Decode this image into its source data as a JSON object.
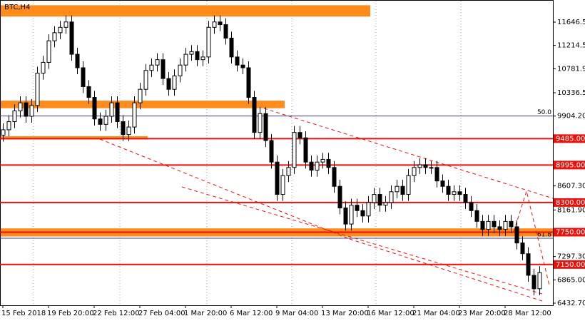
{
  "chart_data": {
    "type": "candlestick",
    "title": "BTC,H4",
    "categories": [
      "15 Feb 2018",
      null,
      null,
      null,
      null,
      null,
      null,
      null,
      "19 Feb 20:00",
      null,
      null,
      null,
      null,
      null,
      null,
      null,
      "22 Feb 12:00",
      null,
      null,
      null,
      null,
      null,
      null,
      null,
      "27 Feb 04:00",
      null,
      null,
      null,
      null,
      null,
      null,
      null,
      "1 Mar 20:00",
      null,
      null,
      null,
      null,
      null,
      null,
      null,
      "6 Mar 12:00",
      null,
      null,
      null,
      null,
      null,
      null,
      null,
      "9 Mar 04:00",
      null,
      null,
      null,
      null,
      null,
      null,
      null,
      "13 Mar 20:00",
      null,
      null,
      null,
      null,
      null,
      null,
      null,
      "16 Mar 12:00",
      null,
      null,
      null,
      null,
      null,
      null,
      null,
      "21 Mar 04:00",
      null,
      null,
      null,
      null,
      null,
      null,
      null,
      "23 Mar 20:00",
      null,
      null,
      null,
      null,
      null,
      null,
      null,
      "28 Mar 12:00",
      null,
      null,
      null,
      null,
      null,
      null
    ],
    "open": [
      9550,
      9650,
      9800,
      10000,
      10150,
      9900,
      10100,
      10700,
      10900,
      11300,
      11450,
      11550,
      11650,
      11050,
      10800,
      10450,
      10250,
      9850,
      9750,
      9900,
      10150,
      9800,
      9560,
      9700,
      10150,
      10400,
      10750,
      10850,
      10950,
      10600,
      10400,
      10650,
      10850,
      11050,
      11100,
      10950,
      11000,
      11550,
      11650,
      11600,
      11350,
      11000,
      10850,
      10800,
      10250,
      9600,
      9950,
      9450,
      9050,
      8450,
      8800,
      8950,
      9600,
      9500,
      9050,
      8900,
      9050,
      9100,
      8950,
      8600,
      8200,
      7900,
      8250,
      8150,
      8050,
      8300,
      8450,
      8250,
      8300,
      8500,
      8600,
      8450,
      8800,
      8950,
      9000,
      8950,
      8950,
      8700,
      8600,
      8450,
      8500,
      8450,
      8300,
      8150,
      7950,
      7800,
      7950,
      7850,
      7800,
      7950,
      7850,
      7550,
      7350,
      6950,
      6700
    ],
    "high": [
      9770,
      9920,
      10120,
      10270,
      10270,
      10220,
      10820,
      11020,
      11420,
      11570,
      11670,
      11770,
      11770,
      11170,
      10920,
      10570,
      10370,
      9970,
      10020,
      10270,
      10270,
      9920,
      9820,
      10270,
      10520,
      10870,
      10970,
      11070,
      11070,
      10720,
      10770,
      10970,
      11170,
      11220,
      11220,
      11120,
      11670,
      11770,
      11770,
      11720,
      11470,
      11120,
      10970,
      10920,
      10370,
      10070,
      10070,
      9570,
      9170,
      8920,
      9070,
      9720,
      9720,
      9620,
      9170,
      9170,
      9220,
      9220,
      9070,
      8720,
      8320,
      8370,
      8370,
      8270,
      8420,
      8570,
      8570,
      8420,
      8620,
      8720,
      8720,
      8920,
      9070,
      9120,
      9120,
      9070,
      9070,
      8820,
      8720,
      8620,
      8620,
      8570,
      8420,
      8270,
      8070,
      8070,
      8070,
      7970,
      8070,
      8070,
      7970,
      7670,
      7470,
      7070,
      7120
    ],
    "low": [
      9430,
      9530,
      9680,
      9880,
      9780,
      9780,
      9980,
      10580,
      10780,
      11180,
      11330,
      11430,
      10930,
      10680,
      10330,
      10130,
      9730,
      9630,
      9630,
      9780,
      9680,
      9440,
      9440,
      9580,
      10030,
      10280,
      10630,
      10730,
      10480,
      10280,
      10280,
      10530,
      10730,
      10930,
      10830,
      10830,
      10880,
      11430,
      11480,
      11230,
      10880,
      10730,
      10680,
      10130,
      9480,
      9480,
      9330,
      8930,
      8330,
      8330,
      8680,
      8830,
      9380,
      8930,
      8780,
      8780,
      8930,
      8830,
      8480,
      8080,
      7780,
      7780,
      8030,
      7930,
      7930,
      8180,
      8130,
      8130,
      8180,
      8380,
      8330,
      8330,
      8680,
      8830,
      8830,
      8830,
      8580,
      8480,
      8330,
      8330,
      8330,
      8180,
      8030,
      7830,
      7680,
      7680,
      7730,
      7680,
      7680,
      7730,
      7430,
      7230,
      6830,
      6580,
      6580
    ],
    "close": [
      9650,
      9800,
      10000,
      10150,
      9900,
      10100,
      10700,
      10900,
      11300,
      11450,
      11550,
      11650,
      11050,
      10800,
      10450,
      10250,
      9850,
      9750,
      9900,
      10150,
      9800,
      9560,
      9700,
      10150,
      10400,
      10750,
      10850,
      10950,
      10600,
      10400,
      10650,
      10850,
      11050,
      11100,
      10950,
      11000,
      11550,
      11650,
      11600,
      11350,
      11000,
      10850,
      10800,
      10250,
      9600,
      9950,
      9450,
      9050,
      8450,
      8800,
      8950,
      9600,
      9500,
      9050,
      8900,
      9050,
      9100,
      8950,
      8600,
      8200,
      7900,
      8250,
      8150,
      8050,
      8300,
      8450,
      8250,
      8300,
      8500,
      8600,
      8450,
      8800,
      8950,
      9000,
      8950,
      8950,
      8700,
      8600,
      8450,
      8500,
      8450,
      8300,
      8150,
      7950,
      7800,
      7950,
      7850,
      7800,
      7950,
      7850,
      7550,
      7350,
      6950,
      6700,
      7000
    ],
    "ylim": [
      6393,
      12057
    ],
    "yticks": [
      {
        "value": 11646.5,
        "label": "11646.50"
      },
      {
        "value": 11214.5,
        "label": "11214.50"
      },
      {
        "value": 10781.9,
        "label": "10781.90"
      },
      {
        "value": 10336.5,
        "label": "10336.50"
      },
      {
        "value": 9904.2,
        "label": "9904.20"
      },
      {
        "value": 8607.3,
        "label": "8607.30"
      },
      {
        "value": 8161.9,
        "label": "8161.90"
      },
      {
        "value": 7297.3,
        "label": "7297.30"
      },
      {
        "value": 6865,
        "label": "6865.00"
      },
      {
        "value": 6432.7,
        "label": "6432.70"
      }
    ],
    "levels": [
      {
        "value": 9485,
        "label": "9485.00"
      },
      {
        "value": 8995,
        "label": "8995.00"
      },
      {
        "value": 8300,
        "label": "8300.00"
      },
      {
        "value": 7750,
        "label": "7750.00"
      },
      {
        "value": 7150,
        "label": "7150.00"
      }
    ],
    "level_color": "#e8120c",
    "fib_levels": [
      {
        "value": 9904.2,
        "label": "50.0"
      },
      {
        "value": 7637,
        "label": "61.8"
      }
    ],
    "zones": [
      {
        "low": 11750,
        "high": 11960,
        "start": 0,
        "end": 64
      },
      {
        "low": 10050,
        "high": 10190,
        "start": 0,
        "end": 49
      },
      {
        "low": 9470,
        "high": 9530,
        "start": 0,
        "end": 25
      },
      {
        "low": 7670,
        "high": 7820,
        "start": 0,
        "end": 96
      }
    ],
    "zone_color": "#ff8c1a"
  }
}
